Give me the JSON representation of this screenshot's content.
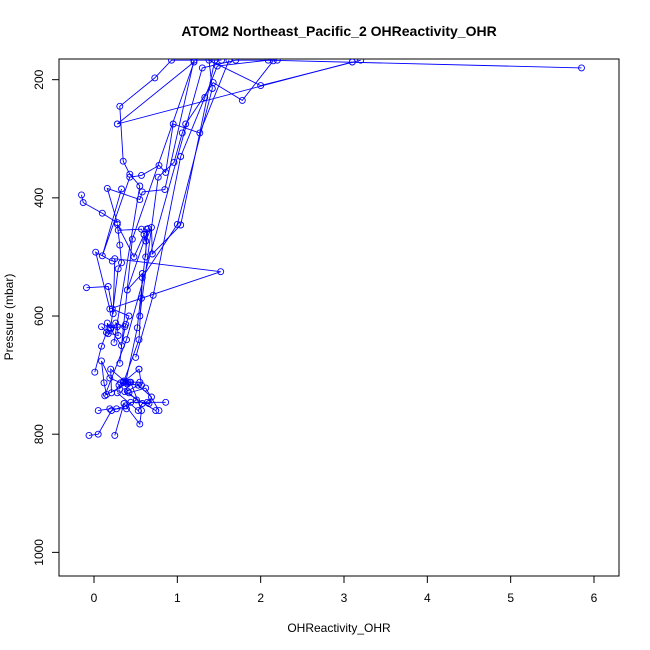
{
  "chart_data": {
    "type": "line",
    "title": "ATOM2 Northeast_Pacific_2 OHReactivity_OHR",
    "xlabel": "OHReactivity_OHR",
    "ylabel": "Pressure (mbar)",
    "xlim": [
      -0.42,
      6.3
    ],
    "ylim": [
      1040,
      165
    ],
    "y_reversed": true,
    "grid": false,
    "legend": "none",
    "color": "#0000ff",
    "marker": "open-circle",
    "x_ticks": [
      "0",
      "1",
      "2",
      "3",
      "4",
      "5",
      "6"
    ],
    "x_tick_values": [
      0,
      1,
      2,
      3,
      4,
      5,
      6
    ],
    "y_ticks": [
      "200",
      "400",
      "600",
      "800",
      "1000"
    ],
    "y_tick_values": [
      200,
      400,
      600,
      800,
      1000
    ],
    "series": [
      {
        "x": [
          -0.06,
          0.05,
          0.21,
          0.38,
          0.51,
          0.42,
          0.62,
          0.78
        ],
        "y": [
          802,
          800,
          760,
          752,
          742,
          730,
          722,
          760
        ]
      },
      {
        "x": [
          0.25,
          0.36,
          0.55,
          0.57,
          0.44,
          0.37,
          0.74
        ],
        "y": [
          802,
          748,
          783,
          760,
          712,
          728,
          760
        ]
      },
      {
        "x": [
          0.05,
          0.19,
          0.27,
          0.39,
          0.44,
          0.64,
          0.86
        ],
        "y": [
          760,
          757,
          757,
          757,
          746,
          746,
          746
        ]
      },
      {
        "x": [
          0.28,
          0.53,
          0.58,
          0.66,
          0.69,
          0.53,
          0.4
        ],
        "y": [
          730,
          760,
          748,
          748,
          737,
          717,
          727
        ]
      },
      {
        "x": [
          0.4,
          0.57,
          0.54,
          0.54,
          0.35,
          0.3,
          0.31
        ],
        "y": [
          715,
          717,
          690,
          690,
          712,
          717,
          724
        ]
      },
      {
        "x": [
          0.41,
          0.32,
          0.19,
          0.09,
          0.12,
          0.15,
          0.43,
          0.55
        ],
        "y": [
          713,
          713,
          705,
          676,
          713,
          733,
          712,
          712
        ]
      },
      {
        "x": [
          0.21,
          0.2,
          0.38,
          0.52,
          0.65,
          0.4,
          0.58,
          0.57
        ],
        "y": [
          730,
          690,
          712,
          620,
          452,
          556,
          528,
          570
        ]
      },
      {
        "x": [
          0.01,
          0.09,
          0.15,
          0.29,
          0.28,
          0.26,
          0.37,
          0.18
        ],
        "y": [
          695,
          651,
          628,
          633,
          618,
          612,
          618,
          620
        ]
      },
      {
        "x": [
          0.09,
          0.17,
          0.16,
          0.2,
          0.33,
          0.38,
          0.42,
          0.22
        ],
        "y": [
          618,
          630,
          612,
          622,
          650,
          614,
          600,
          588
        ]
      },
      {
        "x": [
          -0.09,
          0.17,
          0.23,
          0.25,
          1.52,
          0.19,
          0.02,
          0.22
        ],
        "y": [
          552,
          550,
          596,
          503,
          525,
          588,
          492,
          507
        ]
      },
      {
        "x": [
          0.2,
          0.29,
          0.33,
          0.31,
          0.28,
          0.48,
          0.63,
          0.62
        ],
        "y": [
          620,
          520,
          510,
          480,
          445,
          500,
          453,
          500
        ]
      },
      {
        "x": [
          0.29,
          0.57,
          0.6,
          0.62,
          0.69,
          0.7,
          1.04,
          1.45
        ],
        "y": [
          455,
          453,
          462,
          473,
          450,
          495,
          446,
          167
        ]
      },
      {
        "x": [
          -0.15,
          -0.13,
          0.1,
          0.28,
          0.16,
          0.55,
          0.58,
          0.85,
          1.2
        ],
        "y": [
          395,
          408,
          426,
          442,
          384,
          403,
          390,
          386,
          167
        ]
      },
      {
        "x": [
          0.33,
          0.1,
          0.43,
          0.57,
          0.78,
          0.86,
          0.95,
          1.27,
          1.62
        ],
        "y": [
          385,
          498,
          365,
          362,
          345,
          357,
          275,
          290,
          167
        ]
      },
      {
        "x": [
          0.24,
          0.55,
          0.43,
          0.35,
          0.31,
          0.73,
          0.93,
          1.53
        ],
        "y": [
          645,
          380,
          360,
          338,
          245,
          197,
          167,
          167
        ]
      },
      {
        "x": [
          0.55,
          0.77,
          0.96,
          1.06,
          1.1,
          1.43,
          1.78,
          2.15
        ],
        "y": [
          600,
          365,
          340,
          290,
          275,
          205,
          235,
          168
        ]
      },
      {
        "x": [
          0.5,
          0.71,
          1.04,
          1.33,
          1.48,
          2.09,
          5.85
        ],
        "y": [
          670,
          565,
          330,
          230,
          177,
          167,
          180
        ]
      },
      {
        "x": [
          0.36,
          0.54,
          0.58,
          1.0,
          1.42,
          1.38,
          2.0,
          3.2
        ],
        "y": [
          710,
          640,
          535,
          445,
          215,
          167,
          210,
          167
        ]
      },
      {
        "x": [
          0.31,
          0.46,
          1.2,
          0.28,
          3.1
        ],
        "y": [
          680,
          470,
          170,
          275,
          170
        ]
      },
      {
        "x": [
          0.13,
          0.39,
          1.3,
          1.7,
          2.2
        ],
        "y": [
          735,
          640,
          180,
          167,
          167
        ]
      }
    ]
  }
}
